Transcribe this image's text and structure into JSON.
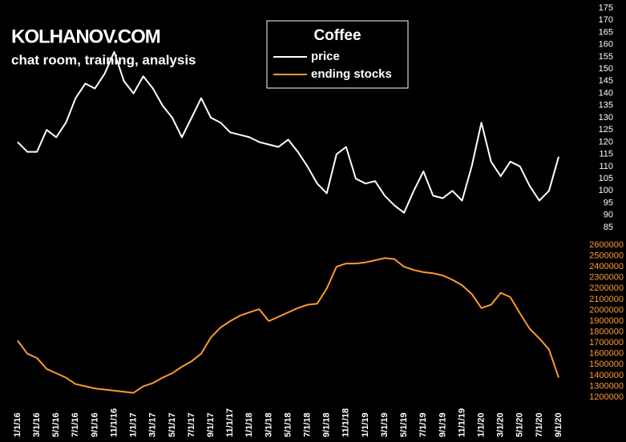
{
  "chart_data": {
    "type": "line",
    "title": "Coffee",
    "brand": "KOLHANOV.COM",
    "subtitle": "chat room, training, analysis",
    "categories": [
      "1/1/16",
      null,
      "3/1/16",
      null,
      "5/1/16",
      null,
      "7/1/16",
      null,
      "9/1/16",
      null,
      "11/1/16",
      null,
      "1/1/17",
      null,
      "3/1/17",
      null,
      "5/1/17",
      null,
      "7/1/17",
      null,
      "9/1/17",
      null,
      "11/1/17",
      null,
      "1/1/18",
      null,
      "3/1/18",
      null,
      "5/1/18",
      null,
      "7/1/18",
      null,
      "9/1/18",
      null,
      "11/1/18",
      null,
      "1/1/19",
      null,
      "3/1/19",
      null,
      "5/1/19",
      null,
      "7/1/19",
      null,
      "9/1/19",
      null,
      "11/1/19",
      null,
      "1/1/20",
      null,
      "3/1/20",
      null,
      "5/1/20",
      null,
      "7/1/20",
      null,
      "9/1/20"
    ],
    "series": [
      {
        "name": "price",
        "color": "#ffffff",
        "axis": "y",
        "values": [
          120,
          116,
          116,
          125,
          122,
          128,
          138,
          144,
          142,
          148,
          157,
          145,
          140,
          147,
          142,
          135,
          130,
          122,
          130,
          138,
          130,
          128,
          124,
          123,
          122,
          120,
          119,
          118,
          121,
          116,
          110,
          103,
          99,
          115,
          118,
          105,
          103,
          104,
          98,
          94,
          91,
          100,
          108,
          98,
          97,
          100,
          96,
          110,
          128,
          112,
          106,
          112,
          110,
          102,
          96,
          100,
          114
        ]
      },
      {
        "name": "ending stocks",
        "color": "#ff9a2e",
        "axis": "y2",
        "values": [
          1720000,
          1600000,
          1560000,
          1460000,
          1420000,
          1380000,
          1320000,
          1300000,
          1280000,
          1270000,
          1260000,
          1250000,
          1240000,
          1300000,
          1330000,
          1380000,
          1420000,
          1480000,
          1530000,
          1600000,
          1750000,
          1840000,
          1900000,
          1950000,
          1980000,
          2010000,
          1900000,
          1940000,
          1980000,
          2020000,
          2050000,
          2060000,
          2200000,
          2400000,
          2430000,
          2430000,
          2440000,
          2460000,
          2480000,
          2470000,
          2400000,
          2370000,
          2350000,
          2340000,
          2320000,
          2280000,
          2230000,
          2150000,
          2020000,
          2050000,
          2160000,
          2120000,
          1970000,
          1830000,
          1740000,
          1640000,
          1380000
        ]
      }
    ],
    "ylim": [
      85,
      175
    ],
    "yticks": [
      85,
      90,
      95,
      100,
      105,
      110,
      115,
      120,
      125,
      130,
      135,
      140,
      145,
      150,
      155,
      160,
      165,
      170,
      175
    ],
    "y2lim": [
      1200000,
      2600000
    ],
    "y2ticks": [
      1200000,
      1300000,
      1400000,
      1500000,
      1600000,
      1700000,
      1800000,
      1900000,
      2000000,
      2100000,
      2200000,
      2300000,
      2400000,
      2500000,
      2600000
    ]
  }
}
